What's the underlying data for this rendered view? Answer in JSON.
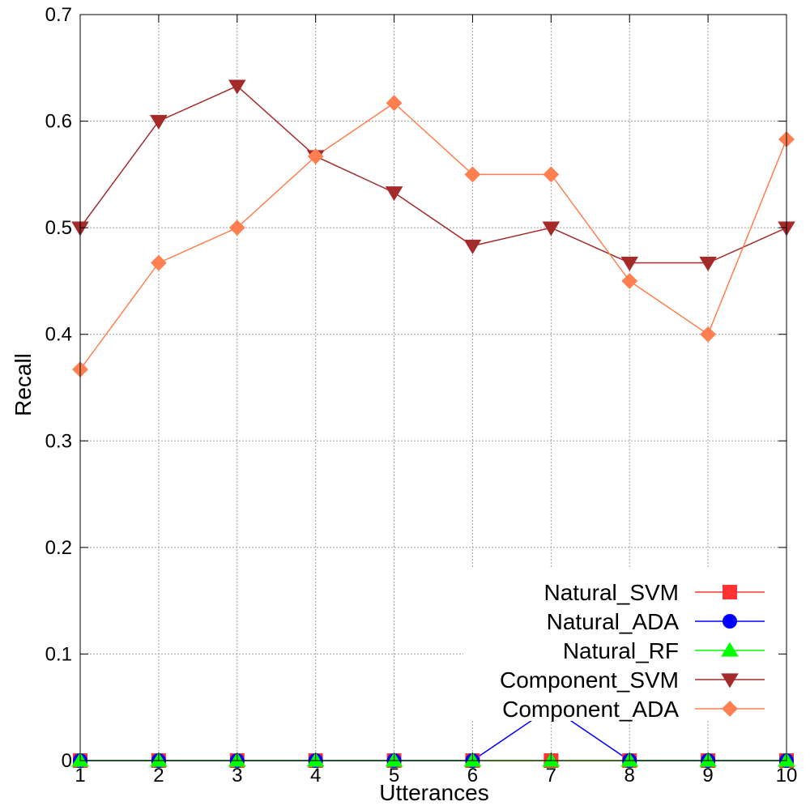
{
  "chart_data": {
    "type": "line",
    "title": "",
    "xlabel": "Utterances",
    "ylabel": "Recall",
    "x": [
      1,
      2,
      3,
      4,
      5,
      6,
      7,
      8,
      9,
      10
    ],
    "xlim": [
      1,
      10
    ],
    "ylim": [
      0,
      0.7
    ],
    "xticks": [
      "1",
      "2",
      "3",
      "4",
      "5",
      "6",
      "7",
      "8",
      "9",
      "10"
    ],
    "yticks": [
      "0",
      "0.1",
      "0.2",
      "0.3",
      "0.4",
      "0.5",
      "0.6",
      "0.7"
    ],
    "grid": true,
    "legend_position": "bottom-right",
    "series": [
      {
        "name": "Natural_SVM",
        "color": "#ff3333",
        "marker": "square",
        "values": [
          0,
          0,
          0,
          0,
          0,
          0,
          0,
          0,
          0,
          0
        ]
      },
      {
        "name": "Natural_ADA",
        "color": "#0000ff",
        "marker": "circle",
        "values": [
          0,
          0,
          0,
          0,
          0,
          0,
          0.05,
          0,
          0,
          0
        ]
      },
      {
        "name": "Natural_RF",
        "color": "#00ff00",
        "marker": "triangle-up",
        "values": [
          0,
          0,
          0,
          0,
          0,
          0,
          0,
          0,
          0,
          0
        ]
      },
      {
        "name": "Component_SVM",
        "color": "#a52a2a",
        "marker": "triangle-down",
        "values": [
          0.5,
          0.6,
          0.633,
          0.567,
          0.533,
          0.483,
          0.5,
          0.467,
          0.467,
          0.5
        ]
      },
      {
        "name": "Component_ADA",
        "color": "#ff7f50",
        "marker": "diamond",
        "values": [
          0.367,
          0.467,
          0.5,
          0.567,
          0.617,
          0.55,
          0.55,
          0.45,
          0.4,
          0.583
        ]
      }
    ]
  }
}
